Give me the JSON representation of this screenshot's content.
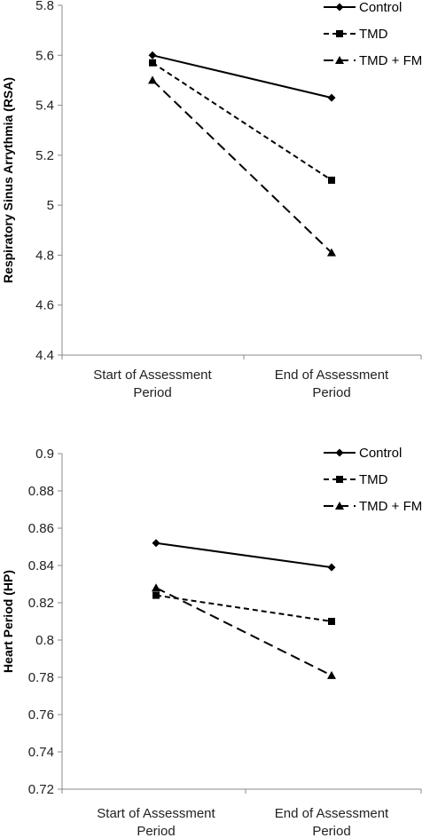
{
  "chart_data": [
    {
      "type": "line",
      "title": "",
      "ylabel": "Respiratory Sinus Arrythmia (RSA)",
      "xlabel": "",
      "categories": [
        [
          "Start of Assessment",
          "Period"
        ],
        [
          "End of Assessment",
          "Period"
        ]
      ],
      "ylim": [
        4.4,
        5.8
      ],
      "yticks": [
        "4.4",
        "4.6",
        "4.8",
        "5",
        "5.2",
        "5.4",
        "5.6",
        "5.8"
      ],
      "legend_position": "top-right",
      "series": [
        {
          "name": "Control",
          "values": [
            5.6,
            5.43
          ],
          "marker": "diamond",
          "dash": "solid"
        },
        {
          "name": "TMD",
          "values": [
            5.57,
            5.1
          ],
          "marker": "square",
          "dash": "short-dash"
        },
        {
          "name": "TMD + FM",
          "values": [
            5.5,
            4.81
          ],
          "marker": "triangle",
          "dash": "long-dash"
        }
      ]
    },
    {
      "type": "line",
      "title": "",
      "ylabel": "Heart Period (HP)",
      "xlabel": "",
      "categories": [
        [
          "Start of Assessment",
          "Period"
        ],
        [
          "End of Assessment",
          "Period"
        ]
      ],
      "ylim": [
        0.72,
        0.9
      ],
      "yticks": [
        "0.72",
        "0.74",
        "0.76",
        "0.78",
        "0.8",
        "0.82",
        "0.84",
        "0.86",
        "0.88",
        "0.9"
      ],
      "legend_position": "top-right",
      "series": [
        {
          "name": "Control",
          "values": [
            0.852,
            0.839
          ],
          "marker": "diamond",
          "dash": "solid"
        },
        {
          "name": "TMD",
          "values": [
            0.824,
            0.81
          ],
          "marker": "square",
          "dash": "short-dash"
        },
        {
          "name": "TMD + FM",
          "values": [
            0.828,
            0.781
          ],
          "marker": "triangle",
          "dash": "long-dash"
        }
      ]
    }
  ]
}
